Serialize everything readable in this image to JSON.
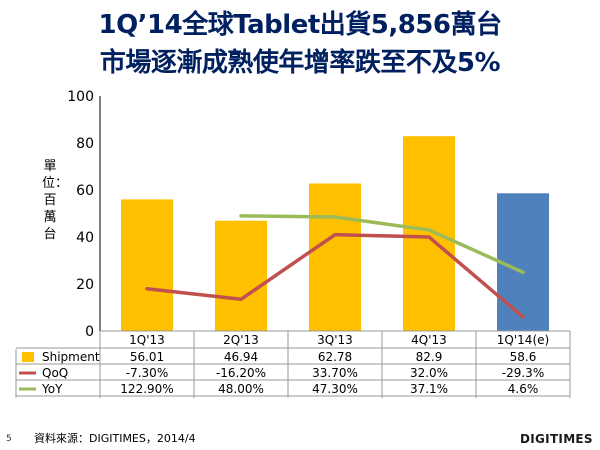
{
  "title_line1": "1Q’14全球Tablet出貨5,856萬台",
  "title_line2": "市場逐漸成熟使年增率跌至不及5%",
  "unit_label": "單位：百萬台",
  "page_number": "5",
  "source": "資料來源：DIGITIMES，2014/4",
  "logo_text": "DIGITIMES",
  "colors": {
    "bar": "#FFC000",
    "bar_forecast": "#4F81BD",
    "qoq": "#C0504D",
    "yoy": "#9BBB59",
    "title": "#002060"
  },
  "chart_data": {
    "type": "bar",
    "categories": [
      "1Q'13",
      "2Q'13",
      "3Q'13",
      "4Q'13",
      "1Q'14(e)"
    ],
    "ylim": [
      0,
      100
    ],
    "yticks": [
      0,
      20,
      40,
      60,
      80,
      100
    ],
    "ylabel": "單位：百萬台",
    "series": [
      {
        "name": "Shipment",
        "type": "bar",
        "values": [
          56.01,
          46.94,
          62.78,
          82.9,
          58.6
        ]
      },
      {
        "name": "QoQ",
        "type": "line",
        "values": [
          18,
          13.5,
          41,
          40,
          6
        ]
      },
      {
        "name": "YoY",
        "type": "line",
        "values": [
          null,
          49,
          48.5,
          43,
          25
        ]
      }
    ],
    "table": {
      "rows": [
        {
          "name": "Shipment",
          "cells": [
            "56.01",
            "46.94",
            "62.78",
            "82.9",
            "58.6"
          ]
        },
        {
          "name": "QoQ",
          "cells": [
            "-7.30%",
            "-16.20%",
            "33.70%",
            "32.0%",
            "-29.3%"
          ]
        },
        {
          "name": "YoY",
          "cells": [
            "122.90%",
            "48.00%",
            "47.30%",
            "37.1%",
            "4.6%"
          ]
        }
      ]
    }
  }
}
